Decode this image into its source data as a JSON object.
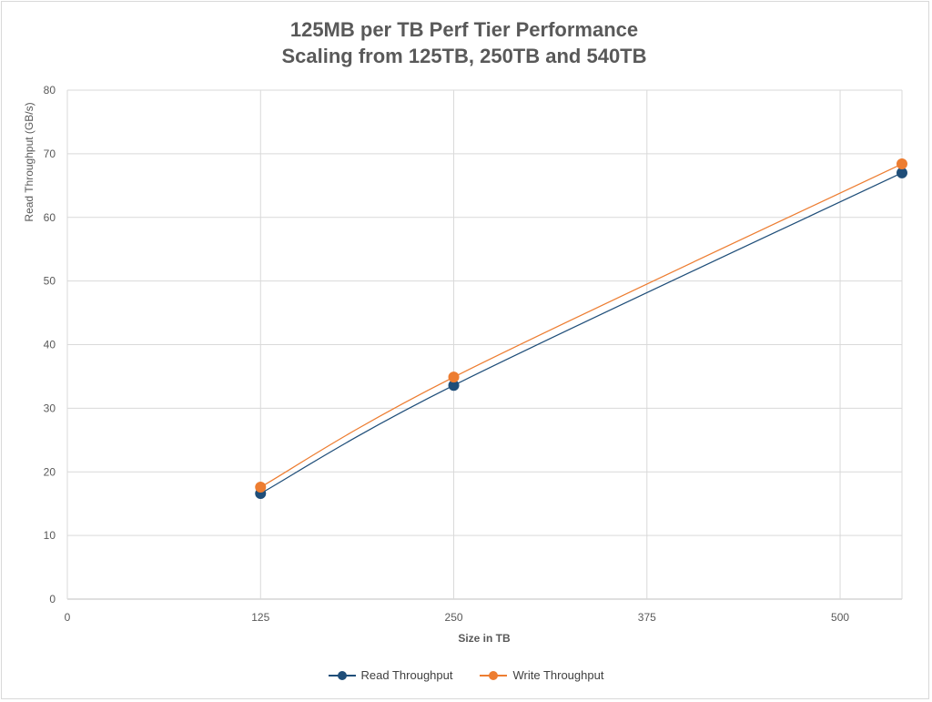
{
  "chart_data": {
    "type": "line",
    "title": "125MB per TB Perf Tier Performance",
    "subtitle": "Scaling from 125TB, 250TB and 540TB",
    "xlabel": "Size in TB",
    "ylabel": "Read Throughput (GB/s)",
    "xlim": [
      0,
      540
    ],
    "ylim": [
      0,
      80
    ],
    "x_ticks": [
      0,
      125,
      250,
      375,
      500
    ],
    "y_ticks": [
      0,
      10,
      20,
      30,
      40,
      50,
      60,
      70,
      80
    ],
    "grid": true,
    "legend": "bottom",
    "series": [
      {
        "name": "Read Throughput",
        "color": "#1f4e79",
        "x": [
          125,
          250,
          540
        ],
        "y": [
          16.6,
          33.6,
          67.0
        ]
      },
      {
        "name": "Write Throughput",
        "color": "#ed7d31",
        "x": [
          125,
          250,
          540
        ],
        "y": [
          17.6,
          34.9,
          68.4
        ]
      }
    ]
  }
}
